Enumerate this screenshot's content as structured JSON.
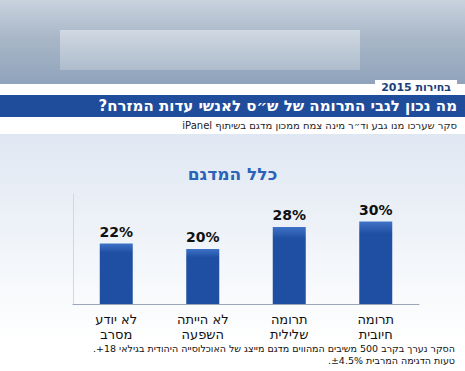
{
  "header": {
    "election": "בחירות 2015",
    "title": "מה נכון לגבי התרומה של ש״ס לאנשי עדות המזרח?",
    "subtitle": "סקר שערכו מנו גבע וד״ר מינה צמח ממכון מדגם בשיתוף iPanel"
  },
  "chart_data": {
    "type": "bar",
    "title": "כלל המדגם",
    "categories": [
      "לא יודע\nמסרב",
      "לא הייתה\nהשפעה",
      "תרומה\nשלילית",
      "תרומה\nחיובית"
    ],
    "values": [
      22,
      20,
      28,
      30
    ],
    "value_labels": [
      "22%",
      "20%",
      "28%",
      "30%"
    ],
    "color": "#1f4fa3",
    "ylim": [
      0,
      40
    ],
    "grid": false,
    "data_labels": true,
    "tick_labels": "x"
  },
  "footnote": [
    "הסקר נערך בקרב 500 משיבים המהווים מדגם מייצג של האוכלוסייה היהודית בגילאי 18+.",
    "טעות הדגימה המרבית ±4.5%."
  ]
}
